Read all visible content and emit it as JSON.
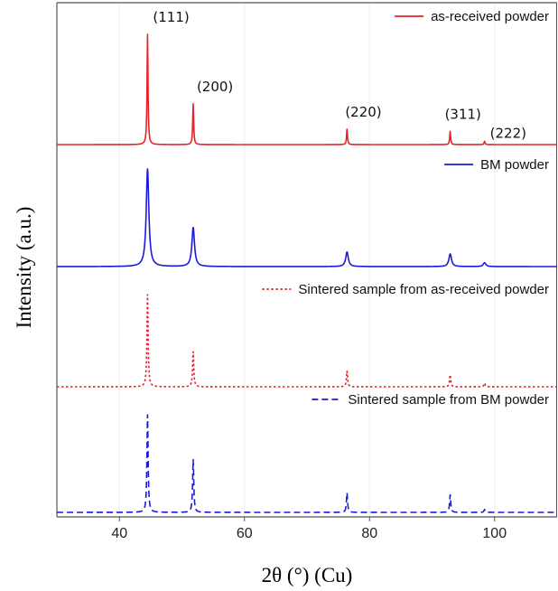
{
  "chart_data": {
    "type": "line",
    "xlabel": "2θ (°) (Cu)",
    "ylabel": "Intensity (a.u.)",
    "xlim": [
      30,
      110
    ],
    "xticks": [
      40,
      60,
      80,
      100
    ],
    "grid": "vertical",
    "legend_position": "top-right of each panel",
    "peak_positions": [
      44.5,
      51.8,
      76.4,
      92.9,
      98.4
    ],
    "peak_labels": [
      {
        "text": "(111)",
        "x": 44.5
      },
      {
        "text": "(200)",
        "x": 51.8
      },
      {
        "text": "(220)",
        "x": 76.4
      },
      {
        "text": "(311)",
        "x": 92.9
      },
      {
        "text": "(222)",
        "x": 98.4
      }
    ],
    "series": [
      {
        "name": "as-received powder",
        "color": "#e8212a",
        "line_style": "solid",
        "peak_intensities": [
          1.0,
          0.37,
          0.14,
          0.12,
          0.03
        ],
        "peak_width": 0.18
      },
      {
        "name": "BM powder",
        "color": "#1a1adb",
        "line_style": "solid",
        "peak_intensities": [
          1.0,
          0.4,
          0.15,
          0.13,
          0.04
        ],
        "peak_width": 0.5
      },
      {
        "name": "Sintered sample from as-received powder",
        "color": "#e8212a",
        "line_style": "dotted",
        "peak_intensities": [
          1.0,
          0.38,
          0.17,
          0.13,
          0.04
        ],
        "peak_width": 0.22
      },
      {
        "name": "Sintered sample from BM powder",
        "color": "#1a1adb",
        "line_style": "dashed",
        "peak_intensities": [
          1.0,
          0.54,
          0.2,
          0.18,
          0.03
        ],
        "peak_width": 0.22
      }
    ]
  }
}
